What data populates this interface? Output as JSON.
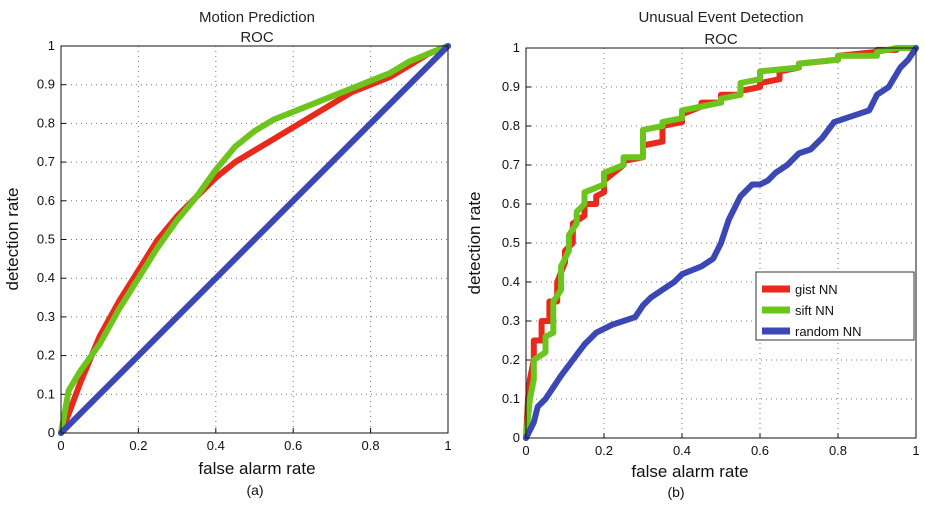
{
  "chart_data": [
    {
      "type": "line",
      "title": "Motion Prediction",
      "subtitle": "ROC",
      "xlabel": "false alarm rate",
      "ylabel": "detection rate",
      "caption": "(a)",
      "xlim": [
        0,
        1
      ],
      "ylim": [
        0,
        1
      ],
      "xticks": [
        "0",
        "0.2",
        "0.4",
        "0.6",
        "0.8",
        "1"
      ],
      "yticks": [
        "0",
        "0.1",
        "0.2",
        "0.3",
        "0.4",
        "0.5",
        "0.6",
        "0.7",
        "0.8",
        "0.9",
        "1"
      ],
      "grid": true,
      "legend": null,
      "series": [
        {
          "color": "#e8291c",
          "x": [
            0,
            0.02,
            0.05,
            0.1,
            0.15,
            0.2,
            0.25,
            0.3,
            0.35,
            0.4,
            0.45,
            0.5,
            0.55,
            0.6,
            0.65,
            0.7,
            0.75,
            0.8,
            0.85,
            0.9,
            0.95,
            1.0
          ],
          "y": [
            0,
            0.05,
            0.13,
            0.25,
            0.34,
            0.42,
            0.5,
            0.56,
            0.61,
            0.66,
            0.7,
            0.73,
            0.76,
            0.79,
            0.82,
            0.85,
            0.88,
            0.9,
            0.92,
            0.95,
            0.98,
            1.0
          ]
        },
        {
          "color": "#6cc41c",
          "x": [
            0,
            0.02,
            0.05,
            0.1,
            0.15,
            0.2,
            0.25,
            0.3,
            0.35,
            0.4,
            0.45,
            0.5,
            0.55,
            0.6,
            0.65,
            0.7,
            0.75,
            0.8,
            0.85,
            0.9,
            0.95,
            1.0
          ],
          "y": [
            0,
            0.11,
            0.16,
            0.23,
            0.32,
            0.4,
            0.48,
            0.55,
            0.61,
            0.68,
            0.74,
            0.78,
            0.81,
            0.83,
            0.85,
            0.87,
            0.89,
            0.91,
            0.93,
            0.96,
            0.98,
            1.0
          ]
        },
        {
          "color": "#3a47b5",
          "x": [
            0,
            0.1,
            0.2,
            0.3,
            0.4,
            0.5,
            0.6,
            0.7,
            0.8,
            0.9,
            1.0
          ],
          "y": [
            0,
            0.1,
            0.2,
            0.3,
            0.4,
            0.5,
            0.6,
            0.7,
            0.8,
            0.9,
            1.0
          ]
        }
      ]
    },
    {
      "type": "line",
      "title": "Unusual Event Detection",
      "subtitle": "ROC",
      "xlabel": "false alarm rate",
      "ylabel": "detection rate",
      "caption": "(b)",
      "xlim": [
        0,
        1
      ],
      "ylim": [
        0,
        1
      ],
      "xticks": [
        "0",
        "0.2",
        "0.4",
        "0.6",
        "0.8",
        "1"
      ],
      "yticks": [
        "0",
        "0.1",
        "0.2",
        "0.3",
        "0.4",
        "0.5",
        "0.6",
        "0.7",
        "0.8",
        "0.9",
        "1"
      ],
      "grid": true,
      "legend": "right",
      "series": [
        {
          "name": "gist NN",
          "color": "#e8291c",
          "x": [
            0,
            0.005,
            0.01,
            0.02,
            0.02,
            0.04,
            0.04,
            0.06,
            0.06,
            0.08,
            0.08,
            0.1,
            0.1,
            0.12,
            0.12,
            0.15,
            0.15,
            0.18,
            0.18,
            0.2,
            0.2,
            0.25,
            0.25,
            0.3,
            0.3,
            0.35,
            0.35,
            0.4,
            0.4,
            0.45,
            0.45,
            0.5,
            0.5,
            0.55,
            0.55,
            0.6,
            0.6,
            0.65,
            0.65,
            0.7,
            0.7,
            0.8,
            0.8,
            0.9,
            0.9,
            0.95,
            0.95,
            1.0
          ],
          "y": [
            0,
            0.1,
            0.15,
            0.2,
            0.25,
            0.25,
            0.3,
            0.3,
            0.35,
            0.35,
            0.4,
            0.45,
            0.48,
            0.5,
            0.55,
            0.57,
            0.6,
            0.6,
            0.62,
            0.63,
            0.66,
            0.7,
            0.71,
            0.72,
            0.75,
            0.76,
            0.8,
            0.81,
            0.83,
            0.85,
            0.86,
            0.86,
            0.88,
            0.88,
            0.89,
            0.9,
            0.91,
            0.92,
            0.94,
            0.95,
            0.96,
            0.97,
            0.98,
            0.99,
            0.995,
            0.995,
            1.0,
            1.0
          ]
        },
        {
          "name": "sift NN",
          "color": "#6cc41c",
          "x": [
            0,
            0.005,
            0.01,
            0.02,
            0.02,
            0.05,
            0.05,
            0.07,
            0.07,
            0.09,
            0.09,
            0.11,
            0.11,
            0.13,
            0.13,
            0.15,
            0.15,
            0.2,
            0.2,
            0.25,
            0.25,
            0.3,
            0.3,
            0.35,
            0.35,
            0.4,
            0.4,
            0.45,
            0.45,
            0.5,
            0.5,
            0.55,
            0.55,
            0.6,
            0.6,
            0.7,
            0.7,
            0.8,
            0.8,
            0.9,
            0.9,
            0.95,
            1.0
          ],
          "y": [
            0,
            0.05,
            0.1,
            0.15,
            0.2,
            0.22,
            0.26,
            0.27,
            0.35,
            0.38,
            0.44,
            0.48,
            0.52,
            0.55,
            0.58,
            0.6,
            0.63,
            0.65,
            0.68,
            0.7,
            0.72,
            0.72,
            0.79,
            0.8,
            0.81,
            0.82,
            0.84,
            0.85,
            0.85,
            0.86,
            0.87,
            0.88,
            0.91,
            0.92,
            0.94,
            0.95,
            0.96,
            0.97,
            0.98,
            0.98,
            0.99,
            1.0,
            1.0
          ]
        },
        {
          "name": "random NN",
          "color": "#3a47b5",
          "x": [
            0,
            0.02,
            0.03,
            0.05,
            0.07,
            0.09,
            0.12,
            0.15,
            0.18,
            0.2,
            0.22,
            0.25,
            0.28,
            0.3,
            0.32,
            0.35,
            0.38,
            0.4,
            0.45,
            0.48,
            0.5,
            0.52,
            0.55,
            0.58,
            0.6,
            0.62,
            0.64,
            0.67,
            0.7,
            0.73,
            0.76,
            0.79,
            0.82,
            0.85,
            0.88,
            0.9,
            0.93,
            0.96,
            0.98,
            1.0
          ],
          "y": [
            0,
            0.04,
            0.08,
            0.1,
            0.13,
            0.16,
            0.2,
            0.24,
            0.27,
            0.28,
            0.29,
            0.3,
            0.31,
            0.34,
            0.36,
            0.38,
            0.4,
            0.42,
            0.44,
            0.46,
            0.5,
            0.56,
            0.62,
            0.65,
            0.65,
            0.66,
            0.68,
            0.7,
            0.73,
            0.74,
            0.77,
            0.81,
            0.82,
            0.83,
            0.84,
            0.88,
            0.9,
            0.95,
            0.97,
            1.0
          ]
        }
      ]
    }
  ]
}
